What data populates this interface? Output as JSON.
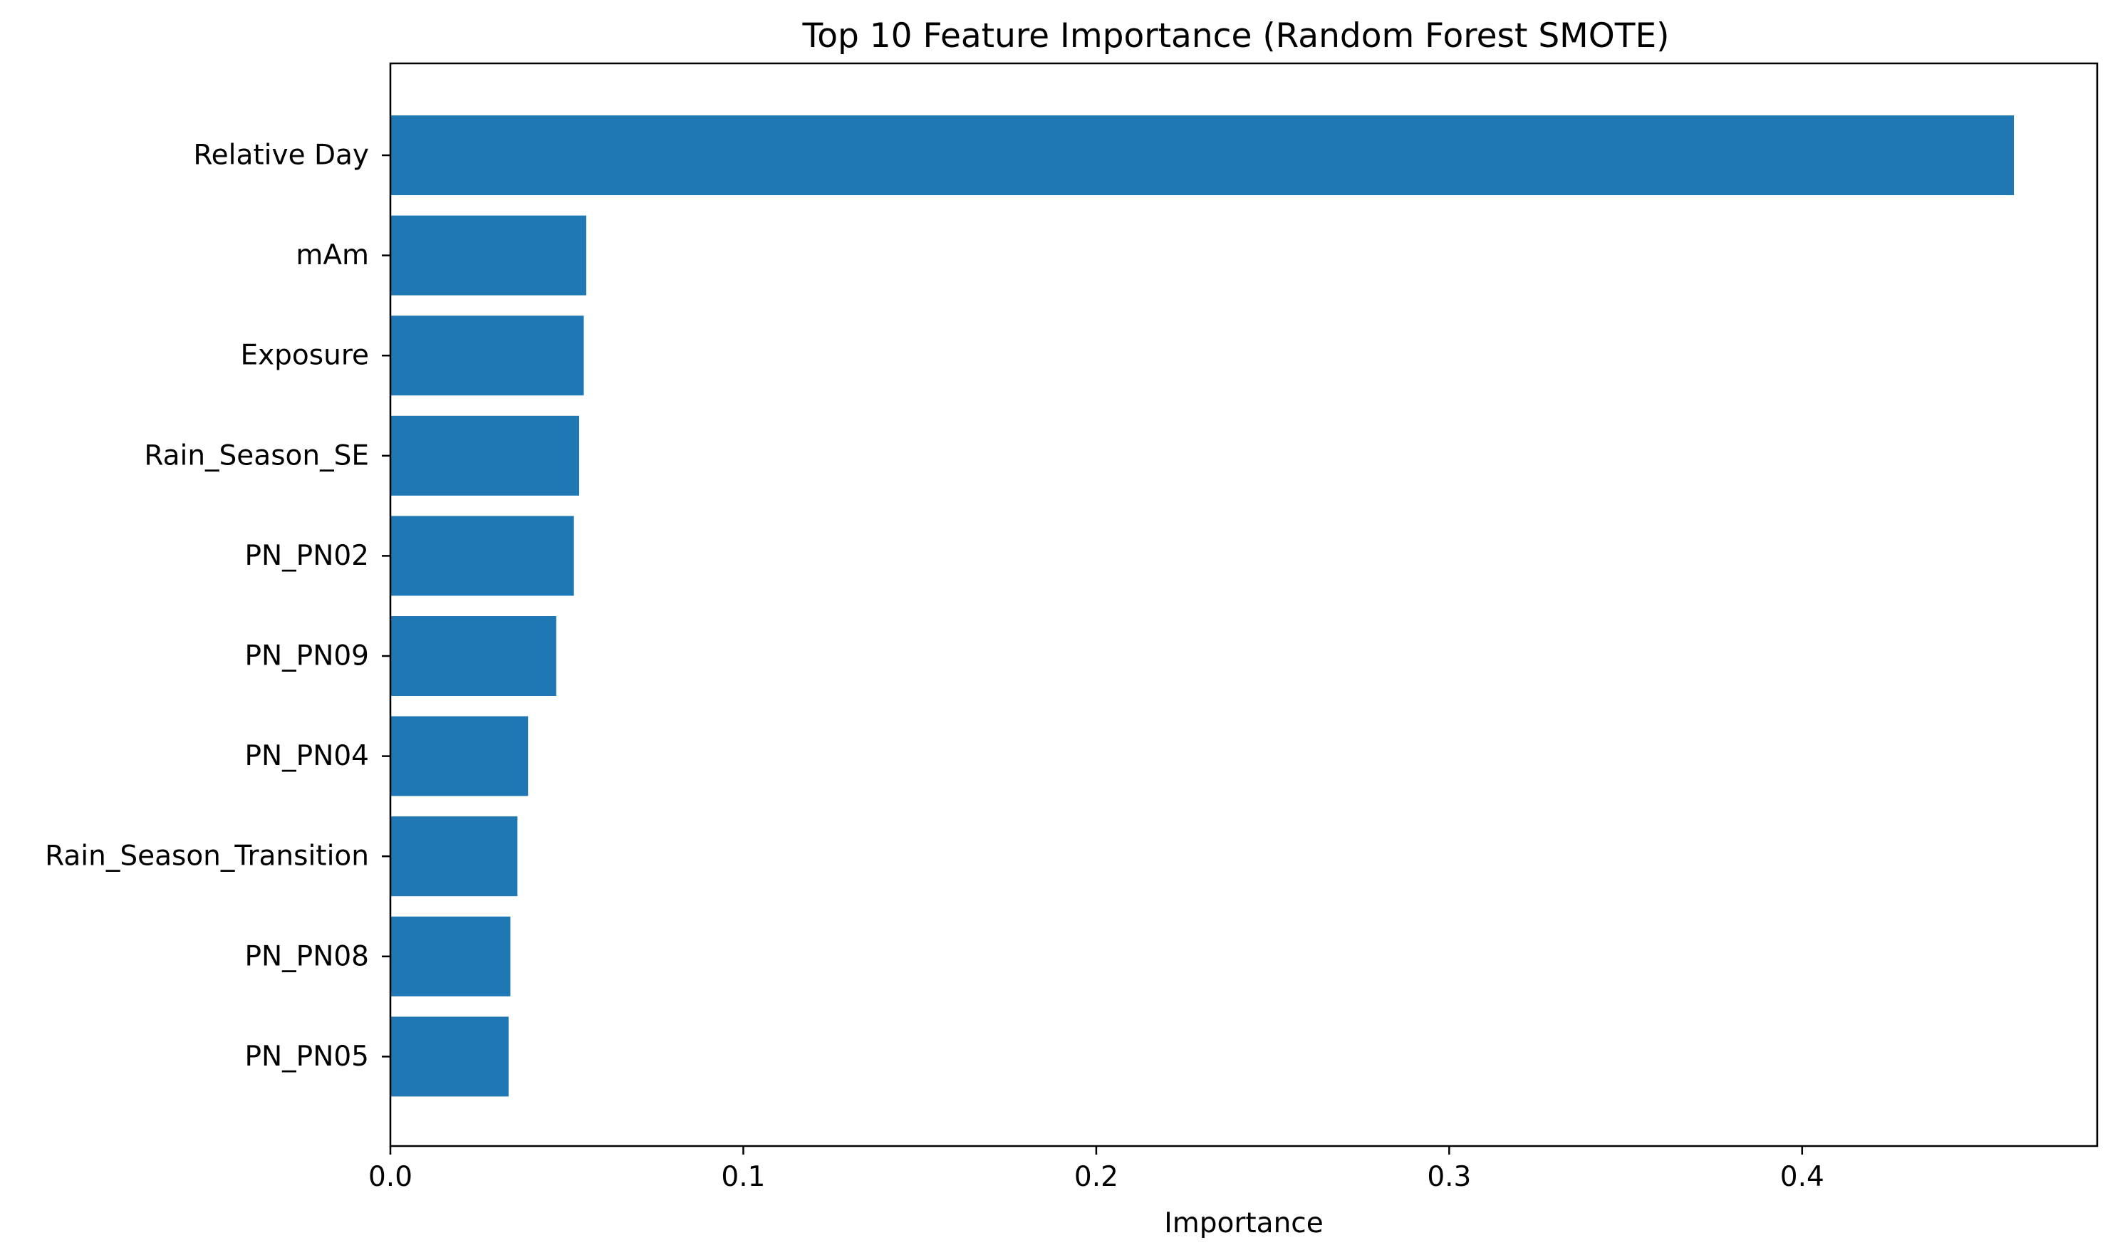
{
  "chart_data": {
    "type": "bar",
    "orientation": "horizontal",
    "title": "Top 10 Feature Importance (Random Forest SMOTE)",
    "xlabel": "Importance",
    "ylabel": "",
    "categories": [
      "Relative Day",
      "mAm",
      "Exposure",
      "Rain_Season_SE",
      "PN_PN02",
      "PN_PN09",
      "PN_PN04",
      "Rain_Season_Transition",
      "PN_PN08",
      "PN_PN05"
    ],
    "values": [
      0.46,
      0.0555,
      0.0548,
      0.0535,
      0.052,
      0.047,
      0.039,
      0.036,
      0.034,
      0.0335
    ],
    "xlim": [
      0,
      0.4836
    ],
    "xticks": [
      0.0,
      0.1,
      0.2,
      0.3,
      0.4
    ],
    "xtick_labels": [
      "0.0",
      "0.1",
      "0.2",
      "0.3",
      "0.4"
    ],
    "bar_color": "#1f77b4",
    "grid": false,
    "legend": "none"
  }
}
